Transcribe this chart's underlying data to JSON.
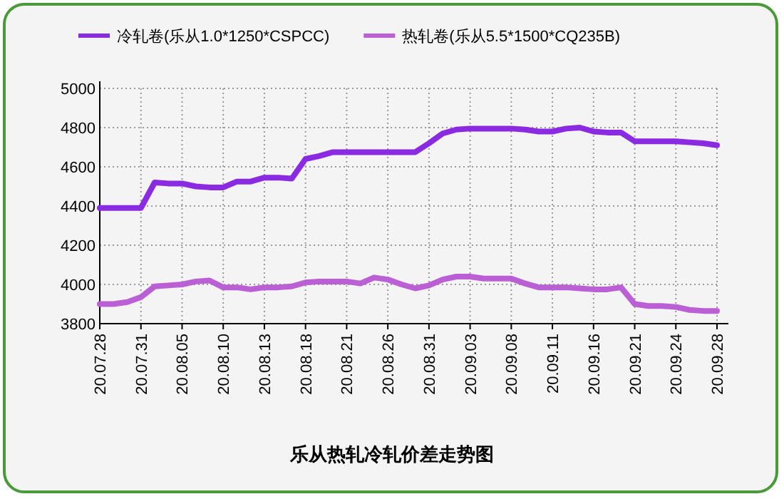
{
  "chart_data": {
    "type": "line",
    "title": "乐从热轧冷轧价差走势图",
    "categories": [
      "20.07.28",
      null,
      null,
      "20.07.31",
      null,
      null,
      "20.08.05",
      null,
      null,
      "20.08.10",
      null,
      null,
      "20.08.13",
      null,
      null,
      "20.08.18",
      null,
      null,
      "20.08.21",
      null,
      null,
      "20.08.26",
      null,
      null,
      "20.08.31",
      null,
      null,
      "20.09.03",
      null,
      null,
      "20.09.08",
      null,
      null,
      "20.09.11",
      null,
      null,
      "20.09.16",
      null,
      null,
      "20.09.21",
      null,
      null,
      "20.09.24",
      null,
      null,
      "20.09.28"
    ],
    "series": [
      {
        "name": "冷轧卷(乐从1.0*1250*CSPCC)",
        "color": "#8a2be2",
        "values": [
          4390,
          4390,
          4390,
          4390,
          4520,
          4515,
          4515,
          4500,
          4495,
          4495,
          4525,
          4525,
          4545,
          4545,
          4540,
          4640,
          4655,
          4675,
          4675,
          4675,
          4675,
          4675,
          4675,
          4675,
          4720,
          4770,
          4790,
          4795,
          4795,
          4795,
          4795,
          4790,
          4780,
          4780,
          4795,
          4800,
          4780,
          4775,
          4775,
          4730,
          4730,
          4730,
          4730,
          4725,
          4720,
          4710
        ]
      },
      {
        "name": "热轧卷(乐从5.5*1500*CQ235B)",
        "color": "#ba5fd4",
        "values": [
          3900,
          3900,
          3910,
          3935,
          3990,
          3995,
          4000,
          4015,
          4020,
          3985,
          3985,
          3975,
          3985,
          3985,
          3990,
          4010,
          4015,
          4015,
          4015,
          4005,
          4035,
          4025,
          4000,
          3980,
          3995,
          4025,
          4040,
          4040,
          4030,
          4030,
          4030,
          4005,
          3985,
          3985,
          3985,
          3980,
          3975,
          3975,
          3985,
          3900,
          3890,
          3890,
          3885,
          3870,
          3865,
          3865
        ]
      }
    ],
    "ylim": [
      3800,
      5000
    ],
    "yticks": [
      3800,
      4000,
      4200,
      4400,
      4600,
      4800,
      5000
    ],
    "grid": true,
    "legend": "top",
    "line_style": "solid"
  }
}
